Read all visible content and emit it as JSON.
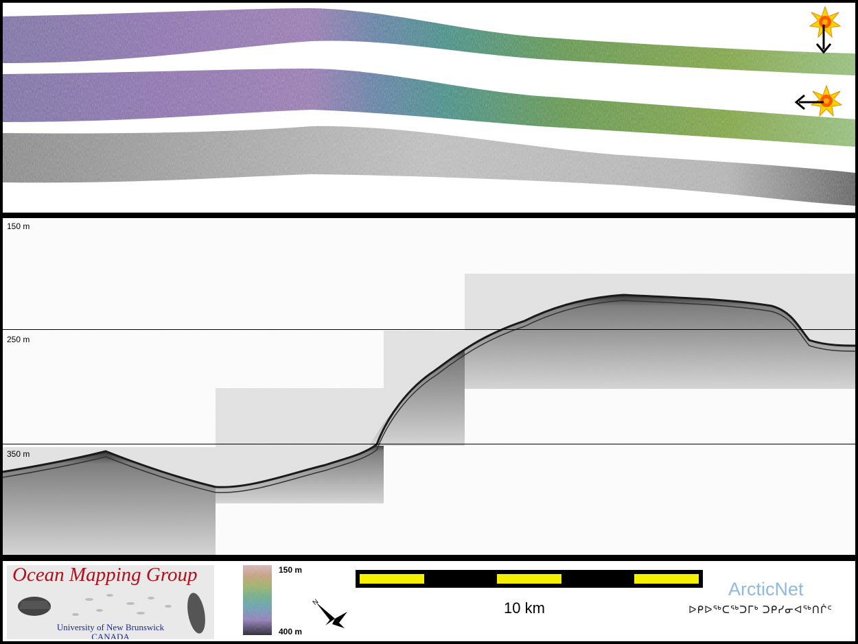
{
  "profile": {
    "depth_labels": [
      "150 m",
      "250 m",
      "350 m"
    ]
  },
  "legend": {
    "org_logo_text": "Ocean Mapping Group",
    "org_university": "University of New Brunswick",
    "org_country": "CANADA",
    "colorbar_top": "150 m",
    "colorbar_bottom": "400 m",
    "scale_label": "10 km",
    "partner_name": "ArcticNet",
    "partner_subtitle": "ᐅᑭᐅᖅᑕᖅᑐᒥᒃ ᑐᑭᓯᓂᐊᖅᑎᒌᑦ"
  },
  "colors": {
    "logo_red": "#b0101a",
    "scale_yellow": "#f4f000",
    "arcticnet_blue": "#8fb9de"
  },
  "icons": [
    "sun-illumination-icon",
    "north-arrow-icon"
  ]
}
